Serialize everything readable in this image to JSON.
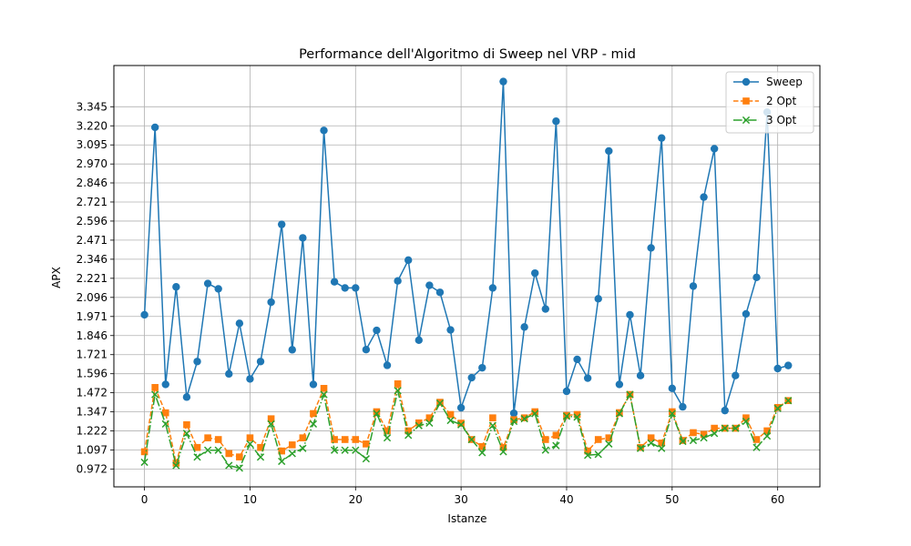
{
  "chart_data": {
    "type": "line",
    "title": "Performance dell'Algoritmo di Sweep nel VRP - mid",
    "xlabel": "Istanze",
    "ylabel": "APX",
    "xlim": [
      -2.9,
      64
    ],
    "ylim": [
      0.855,
      3.615
    ],
    "xticks": [
      0,
      10,
      20,
      30,
      40,
      50,
      60
    ],
    "yticks": [
      "0.972",
      "1.097",
      "1.222",
      "1.347",
      "1.472",
      "1.596",
      "1.721",
      "1.846",
      "1.971",
      "2.096",
      "2.221",
      "2.346",
      "2.471",
      "2.596",
      "2.721",
      "2.846",
      "2.970",
      "3.095",
      "3.220",
      "3.345"
    ],
    "grid": true,
    "legend_position": "top-right",
    "series": [
      {
        "name": "Sweep",
        "color": "#1f77b4",
        "marker": "circle",
        "dash": "solid",
        "values": [
          1.982,
          3.21,
          1.526,
          2.165,
          1.443,
          1.676,
          2.187,
          2.152,
          1.595,
          1.926,
          1.562,
          1.676,
          2.065,
          2.574,
          1.753,
          2.486,
          1.526,
          3.19,
          2.198,
          2.158,
          2.158,
          1.754,
          1.88,
          1.651,
          2.204,
          2.34,
          1.816,
          2.175,
          2.129,
          1.883,
          1.373,
          1.57,
          1.635,
          2.158,
          3.51,
          1.337,
          1.902,
          2.255,
          2.02,
          3.25,
          1.481,
          1.69,
          1.567,
          2.087,
          3.055,
          1.526,
          1.982,
          1.584,
          2.42,
          3.14,
          1.5,
          1.379,
          2.17,
          2.753,
          3.07,
          1.355,
          1.584,
          1.988,
          2.227,
          3.31,
          1.63,
          1.65
        ]
      },
      {
        "name": "2 Opt",
        "color": "#ff7f0e",
        "marker": "square",
        "dash": "dashed",
        "values": [
          1.085,
          1.506,
          1.34,
          1.01,
          1.262,
          1.113,
          1.176,
          1.165,
          1.073,
          1.051,
          1.176,
          1.113,
          1.301,
          1.09,
          1.13,
          1.176,
          1.335,
          1.5,
          1.165,
          1.165,
          1.165,
          1.136,
          1.347,
          1.222,
          1.53,
          1.222,
          1.274,
          1.307,
          1.409,
          1.329,
          1.272,
          1.165,
          1.119,
          1.307,
          1.113,
          1.295,
          1.307,
          1.347,
          1.165,
          1.193,
          1.323,
          1.329,
          1.09,
          1.165,
          1.176,
          1.341,
          1.46,
          1.113,
          1.176,
          1.142,
          1.347,
          1.159,
          1.21,
          1.199,
          1.239,
          1.239,
          1.239,
          1.307,
          1.165,
          1.222,
          1.375,
          1.42
        ]
      },
      {
        "name": "3 Opt",
        "color": "#2ca02c",
        "marker": "x",
        "dash": "dashdot",
        "values": [
          1.016,
          1.46,
          1.267,
          0.995,
          1.205,
          1.05,
          1.095,
          1.095,
          0.995,
          0.978,
          1.136,
          1.05,
          1.267,
          1.022,
          1.073,
          1.107,
          1.267,
          1.46,
          1.095,
          1.095,
          1.095,
          1.039,
          1.335,
          1.176,
          1.485,
          1.193,
          1.256,
          1.273,
          1.403,
          1.29,
          1.262,
          1.165,
          1.079,
          1.256,
          1.085,
          1.284,
          1.301,
          1.335,
          1.096,
          1.125,
          1.318,
          1.312,
          1.062,
          1.068,
          1.136,
          1.335,
          1.46,
          1.107,
          1.142,
          1.107,
          1.335,
          1.153,
          1.159,
          1.176,
          1.205,
          1.239,
          1.239,
          1.284,
          1.113,
          1.188,
          1.369,
          1.42
        ]
      }
    ]
  }
}
